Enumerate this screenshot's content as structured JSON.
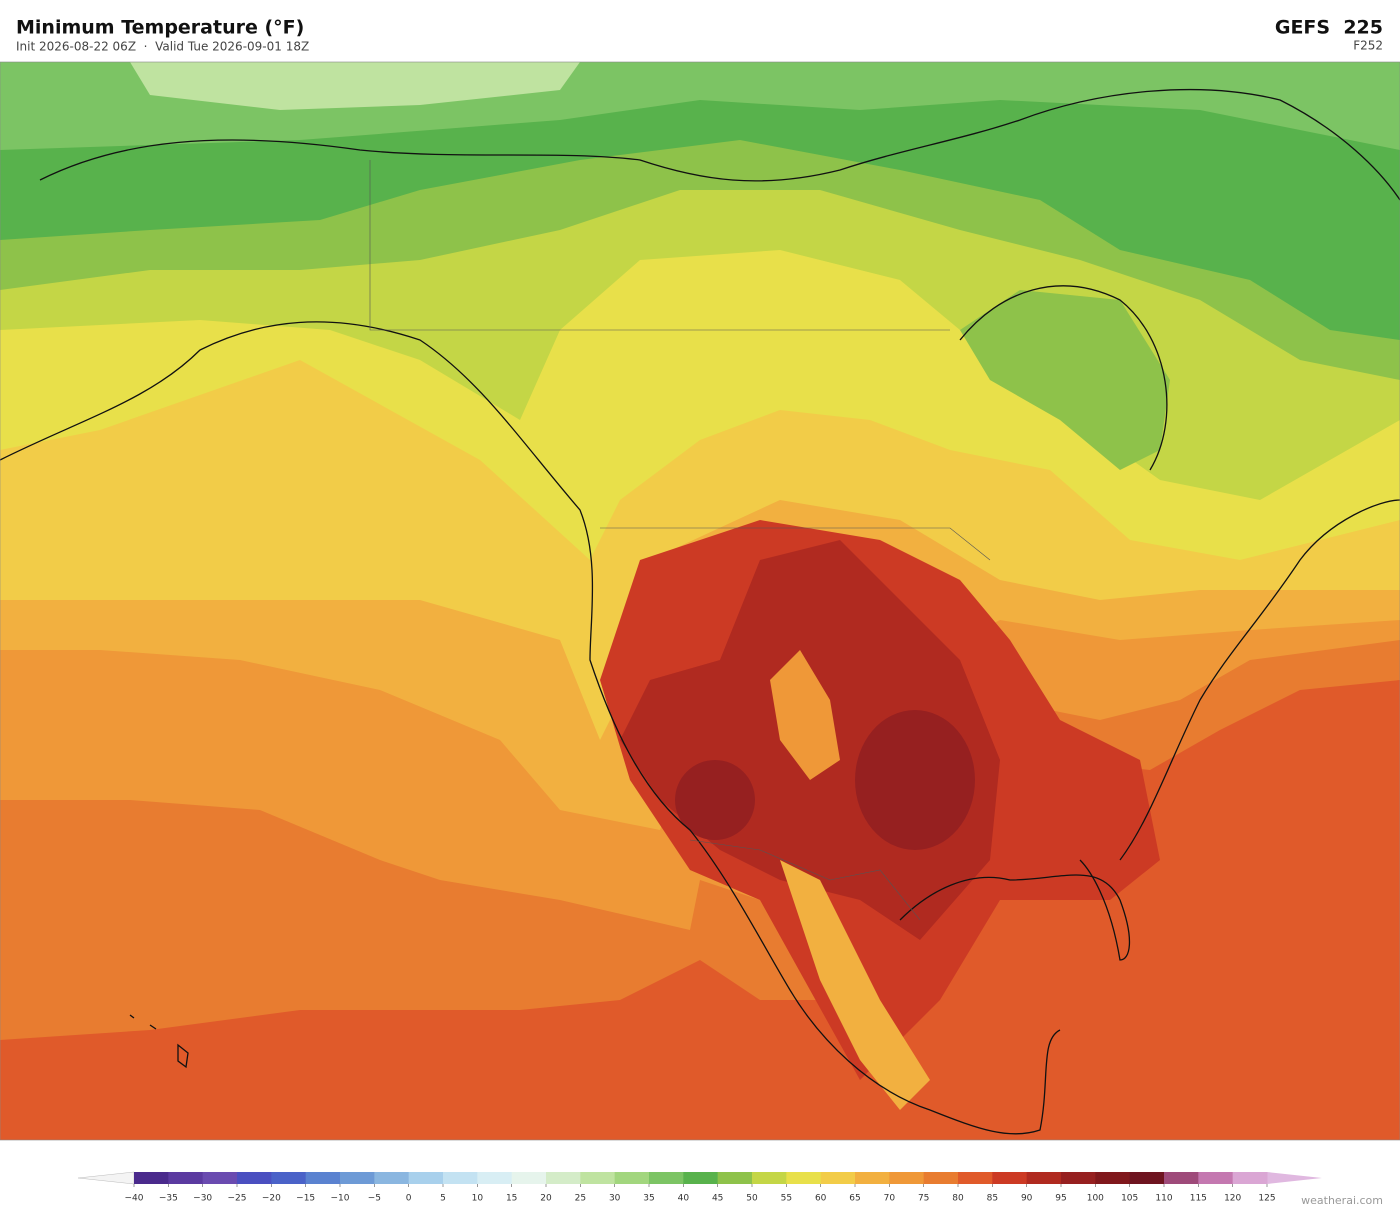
{
  "header": {
    "title": "Minimum Temperature  (°F)",
    "subtitle": "Init 2026-08-22 06Z  ·  Valid Tue 2026-09-01 18Z",
    "model": "GEFS  225",
    "forecast_hour": "F252"
  },
  "colorbar": {
    "ticks": [
      {
        "value": -40,
        "label": "−40"
      },
      {
        "value": -35,
        "label": "−35"
      },
      {
        "value": -30,
        "label": "−30"
      },
      {
        "value": -25,
        "label": "−25"
      },
      {
        "value": -20,
        "label": "−20"
      },
      {
        "value": -15,
        "label": "−15"
      },
      {
        "value": -10,
        "label": "−10"
      },
      {
        "value": -5,
        "label": "−5"
      },
      0,
      5,
      10,
      15,
      20,
      25,
      30,
      35,
      40,
      45,
      50,
      55,
      60,
      65,
      70,
      75,
      80,
      85,
      90,
      95,
      100,
      105,
      110,
      115,
      120,
      125
    ],
    "colors": [
      "#4a2a8c",
      "#5b3aa0",
      "#6a4bb0",
      "#4a4fc0",
      "#4a62c8",
      "#5a82d0",
      "#6d9ad6",
      "#8ab6e0",
      "#a8d0ec",
      "#c3e2f2",
      "#d8eef4",
      "#e6f4ec",
      "#d4ecc8",
      "#bfe3a0",
      "#a2d67e",
      "#7cc464",
      "#58b24c",
      "#8ec24a",
      "#c4d646",
      "#e8e04a",
      "#f2cc48",
      "#f2b040",
      "#ef9838",
      "#e87c30",
      "#e05a2a",
      "#cc3a24",
      "#b02a20",
      "#962020",
      "#80181c",
      "#6e1420",
      "#9e4a7a",
      "#c478b0",
      "#daa6d4"
    ],
    "under_color": "#f4f4f4",
    "over_color": "#e0b8e0"
  },
  "watermark": "weatherai.com"
}
